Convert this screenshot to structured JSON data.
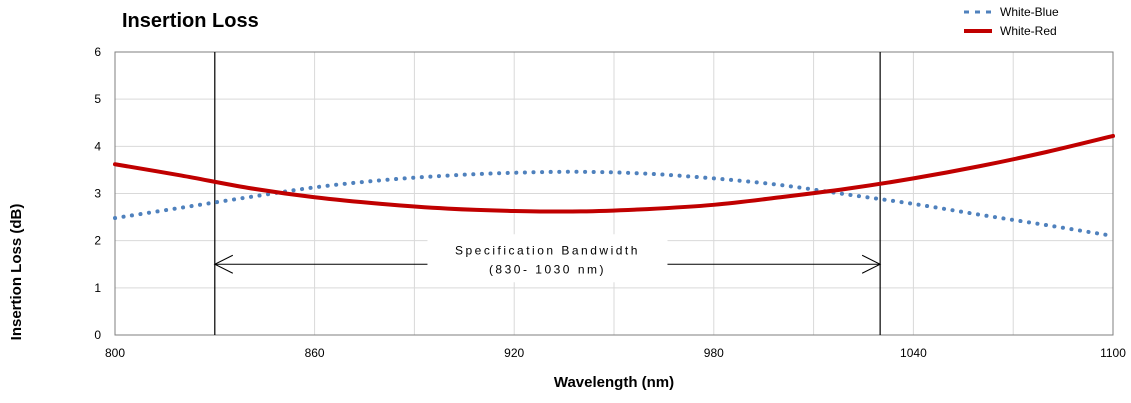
{
  "chart_data": {
    "type": "line",
    "title": "Insertion Loss",
    "xlabel": "Wavelength (nm)",
    "ylabel": "Insertion Loss (dB)",
    "xlim": [
      800,
      1100
    ],
    "ylim": [
      0,
      6
    ],
    "x_ticks": [
      800,
      860,
      920,
      980,
      1040,
      1100
    ],
    "y_ticks": [
      0,
      1,
      2,
      3,
      4,
      5,
      6
    ],
    "grid": true,
    "legend_position": "top-right",
    "series": [
      {
        "name": "White-Blue",
        "style": "dotted",
        "color": "#4f81bd",
        "x": [
          800,
          820,
          840,
          860,
          880,
          900,
          920,
          940,
          960,
          980,
          1000,
          1020,
          1040,
          1060,
          1080,
          1100
        ],
        "y": [
          2.48,
          2.7,
          2.92,
          3.13,
          3.28,
          3.38,
          3.44,
          3.46,
          3.42,
          3.32,
          3.18,
          2.98,
          2.78,
          2.55,
          2.33,
          2.1
        ]
      },
      {
        "name": "White-Red",
        "style": "solid",
        "color": "#c00000",
        "x": [
          800,
          820,
          840,
          860,
          880,
          900,
          920,
          940,
          960,
          980,
          1000,
          1020,
          1040,
          1060,
          1080,
          1100
        ],
        "y": [
          3.62,
          3.38,
          3.12,
          2.92,
          2.78,
          2.68,
          2.63,
          2.62,
          2.67,
          2.76,
          2.92,
          3.1,
          3.32,
          3.58,
          3.88,
          4.22
        ]
      }
    ],
    "vertical_lines": [
      830,
      1030
    ],
    "annotation": {
      "line1": "Specification Bandwidth",
      "line2": "(830- 1030 nm)",
      "x_start": 830,
      "x_end": 1030,
      "y": 1.5
    }
  }
}
